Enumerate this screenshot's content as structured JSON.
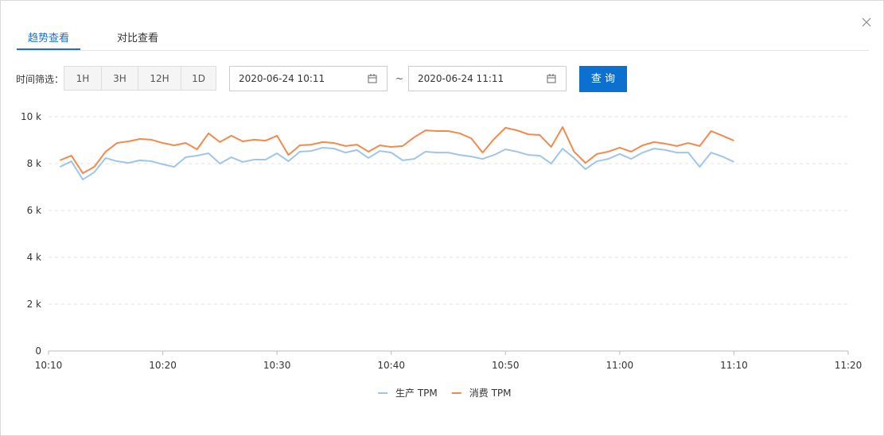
{
  "tabs": [
    "趋势查看",
    "对比查看"
  ],
  "filter": {
    "label": "时间筛选：",
    "ranges": [
      "1H",
      "3H",
      "12H",
      "1D"
    ],
    "start": "2020-06-24 10:11",
    "separator": "~",
    "end": "2020-06-24 11:11",
    "submit": "查 询"
  },
  "chart_data": {
    "type": "line",
    "x": [
      "10:11",
      "10:12",
      "10:13",
      "10:14",
      "10:15",
      "10:16",
      "10:17",
      "10:18",
      "10:19",
      "10:20",
      "10:21",
      "10:22",
      "10:23",
      "10:24",
      "10:25",
      "10:26",
      "10:27",
      "10:28",
      "10:29",
      "10:30",
      "10:31",
      "10:32",
      "10:33",
      "10:34",
      "10:35",
      "10:36",
      "10:37",
      "10:38",
      "10:39",
      "10:40",
      "10:41",
      "10:42",
      "10:43",
      "10:44",
      "10:45",
      "10:46",
      "10:47",
      "10:48",
      "10:49",
      "10:50",
      "10:51",
      "10:52",
      "10:53",
      "10:54",
      "10:55",
      "10:56",
      "10:57",
      "10:58",
      "10:59",
      "11:00",
      "11:01",
      "11:02",
      "11:03",
      "11:04",
      "11:05",
      "11:06",
      "11:07",
      "11:08",
      "11:09",
      "11:10"
    ],
    "xlim": [
      "10:10",
      "11:20"
    ],
    "xticks": [
      "10:10",
      "10:20",
      "10:30",
      "10:40",
      "10:50",
      "11:00",
      "11:10",
      "11:20"
    ],
    "ylim": [
      0,
      10000
    ],
    "yticks": [
      0,
      {
        "value": 2000,
        "label": "2 k"
      },
      {
        "value": 4000,
        "label": "4 k"
      },
      {
        "value": 6000,
        "label": "6 k"
      },
      {
        "value": 8000,
        "label": "8 k"
      },
      {
        "value": 10000,
        "label": "10 k"
      }
    ],
    "grid": true,
    "series": [
      {
        "name": "生产 TPM",
        "color": "#9fc5ea",
        "values": [
          7860,
          8100,
          7320,
          7630,
          8240,
          8100,
          8030,
          8140,
          8100,
          7970,
          7860,
          8270,
          8340,
          8440,
          8000,
          8270,
          8070,
          8170,
          8170,
          8440,
          8100,
          8510,
          8540,
          8680,
          8640,
          8470,
          8580,
          8240,
          8540,
          8470,
          8140,
          8200,
          8510,
          8470,
          8470,
          8370,
          8300,
          8200,
          8370,
          8610,
          8510,
          8370,
          8340,
          8000,
          8640,
          8240,
          7760,
          8100,
          8200,
          8410,
          8200,
          8470,
          8640,
          8580,
          8470,
          8470,
          7860,
          8470,
          8300,
          8070
        ]
      },
      {
        "name": "消费 TPM",
        "color": "#f08a4d",
        "values": [
          8140,
          8340,
          7590,
          7860,
          8510,
          8880,
          8950,
          9050,
          9020,
          8880,
          8780,
          8880,
          8610,
          9290,
          8920,
          9190,
          8950,
          9020,
          8980,
          9190,
          8370,
          8780,
          8810,
          8920,
          8880,
          8750,
          8810,
          8510,
          8780,
          8710,
          8750,
          9120,
          9420,
          9390,
          9390,
          9290,
          9080,
          8470,
          9050,
          9530,
          9420,
          9250,
          9220,
          8710,
          9560,
          8510,
          8030,
          8410,
          8510,
          8680,
          8510,
          8780,
          8920,
          8850,
          8750,
          8880,
          8750,
          9390,
          9190,
          8980
        ]
      }
    ],
    "legend": "bottom"
  }
}
